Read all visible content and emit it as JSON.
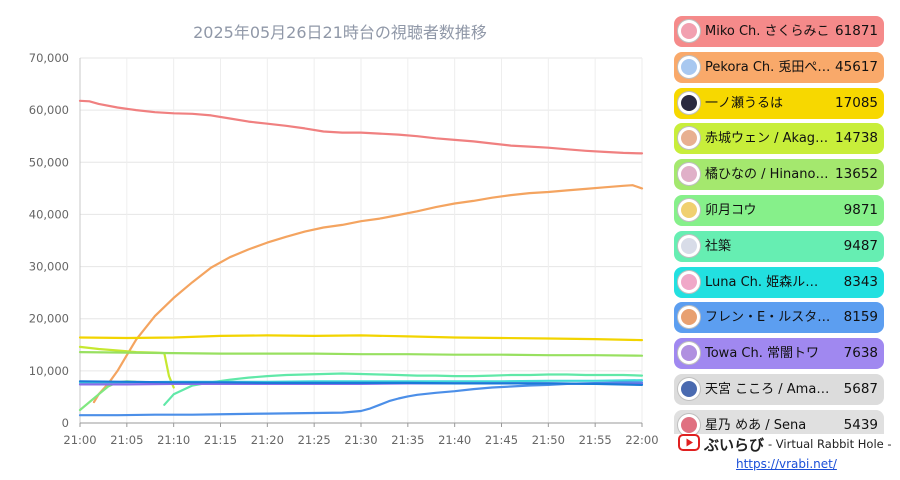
{
  "chart_data": {
    "type": "line",
    "title": "2025年05月26日21時台の視聴者数推移",
    "xlabel": "",
    "ylabel": "",
    "x_ticks": [
      "21:00",
      "21:05",
      "21:10",
      "21:15",
      "21:20",
      "21:25",
      "21:30",
      "21:35",
      "21:40",
      "21:45",
      "21:50",
      "21:55",
      "22:00"
    ],
    "xlim": [
      0,
      60
    ],
    "ylim": [
      0,
      70000
    ],
    "y_ticks": [
      0,
      10000,
      20000,
      30000,
      40000,
      50000,
      60000,
      70000
    ],
    "y_tick_labels": [
      "0",
      "10,000",
      "20,000",
      "30,000",
      "40,000",
      "50,000",
      "60,000",
      "70,000"
    ],
    "grid": true,
    "legend": "right",
    "series": [
      {
        "name": "Miko Ch. さくらみこ",
        "color": "#f08080",
        "x": [
          0,
          1,
          2,
          4,
          6,
          8,
          10,
          12,
          14,
          16,
          18,
          20,
          22,
          24,
          26,
          28,
          30,
          32,
          34,
          36,
          38,
          40,
          42,
          44,
          46,
          48,
          50,
          52,
          54,
          56,
          58,
          60
        ],
        "values": [
          61800,
          61700,
          61200,
          60500,
          60000,
          59600,
          59400,
          59300,
          59000,
          58400,
          57800,
          57400,
          57000,
          56500,
          55900,
          55700,
          55700,
          55500,
          55300,
          55000,
          54600,
          54300,
          54000,
          53600,
          53200,
          53000,
          52800,
          52500,
          52200,
          52000,
          51800,
          51700
        ]
      },
      {
        "name": "Pekora Ch. 兎田ぺこら",
        "color": "#f4a460",
        "x": [
          1.5,
          2,
          3,
          4,
          5,
          6,
          8,
          10,
          12,
          14,
          16,
          18,
          20,
          22,
          24,
          26,
          28,
          30,
          32,
          34,
          36,
          38,
          40,
          42,
          44,
          46,
          48,
          50,
          52,
          54,
          56,
          58,
          59,
          60
        ],
        "values": [
          4000,
          5500,
          7500,
          10000,
          13000,
          16000,
          20500,
          24000,
          27000,
          29800,
          31800,
          33300,
          34600,
          35700,
          36700,
          37500,
          38000,
          38700,
          39200,
          39900,
          40600,
          41400,
          42100,
          42600,
          43200,
          43700,
          44100,
          44300,
          44600,
          44900,
          45200,
          45500,
          45600,
          45000
        ]
      },
      {
        "name": "一ノ瀬うるは",
        "color": "#f2d400",
        "x": [
          0,
          5,
          10,
          15,
          20,
          25,
          30,
          35,
          40,
          45,
          50,
          55,
          60
        ],
        "values": [
          16400,
          16300,
          16400,
          16700,
          16800,
          16700,
          16800,
          16600,
          16400,
          16300,
          16200,
          16100,
          15900
        ]
      },
      {
        "name": "赤城ウェン / Akagi Wen",
        "color": "#c6e830",
        "x": [
          0,
          2,
          4,
          6,
          8,
          9,
          9.5,
          10
        ],
        "values": [
          14600,
          14200,
          13900,
          13600,
          13500,
          13400,
          9000,
          6800
        ]
      },
      {
        "name": "橘ひなの / Hinano Tachibana",
        "color": "#98e060",
        "x": [
          0,
          5,
          10,
          15,
          20,
          25,
          30,
          35,
          40,
          45,
          50,
          55,
          60
        ],
        "values": [
          13600,
          13500,
          13400,
          13300,
          13300,
          13300,
          13200,
          13200,
          13100,
          13100,
          13000,
          13000,
          12900
        ]
      },
      {
        "name": "卯月コウ",
        "color": "#80e880",
        "x": [
          0,
          1,
          2,
          3,
          4,
          5,
          6,
          8,
          9
        ],
        "values": [
          2500,
          4000,
          5500,
          7000,
          7800,
          8000,
          7900,
          7800,
          7700
        ]
      },
      {
        "name": "社築",
        "color": "#60e8a8",
        "x": [
          9,
          10,
          12,
          14,
          16,
          18,
          20,
          22,
          24,
          26,
          28,
          30,
          32,
          34,
          36,
          38,
          40,
          42,
          44,
          46,
          48,
          50,
          52,
          54,
          56,
          58,
          60
        ],
        "values": [
          3500,
          5500,
          7200,
          7800,
          8300,
          8700,
          9000,
          9200,
          9300,
          9400,
          9500,
          9400,
          9300,
          9200,
          9100,
          9100,
          9000,
          9000,
          9100,
          9200,
          9200,
          9300,
          9300,
          9200,
          9200,
          9200,
          9100
        ]
      },
      {
        "name": "Luna Ch. 姫森ルーナ",
        "color": "#40d8d8",
        "x": [
          0,
          5,
          10,
          15,
          20,
          25,
          30,
          35,
          40,
          45,
          50,
          55,
          60
        ],
        "values": [
          7700,
          7800,
          7900,
          7900,
          7900,
          8000,
          8000,
          8000,
          8000,
          8000,
          8100,
          8100,
          8200
        ]
      },
      {
        "name": "フレン・E・ルスタリオ",
        "color": "#4c8fe8",
        "x": [
          0,
          4,
          8,
          12,
          16,
          20,
          24,
          28,
          30,
          31,
          32,
          33,
          34,
          35,
          36,
          38,
          40,
          42,
          44,
          46,
          48,
          50,
          52,
          54,
          56,
          58,
          60
        ],
        "values": [
          1500,
          1500,
          1600,
          1600,
          1700,
          1800,
          1900,
          2000,
          2300,
          2800,
          3500,
          4200,
          4700,
          5100,
          5400,
          5800,
          6100,
          6500,
          6800,
          7000,
          7200,
          7300,
          7500,
          7600,
          7700,
          7800,
          7800
        ]
      },
      {
        "name": "Towa Ch. 常闇トワ",
        "color": "#8a6ce8",
        "x": [
          0,
          5,
          10,
          15,
          20,
          25,
          30,
          35,
          40,
          45,
          50,
          55,
          60
        ],
        "values": [
          7400,
          7400,
          7500,
          7500,
          7500,
          7500,
          7500,
          7600,
          7600,
          7600,
          7600,
          7500,
          7500
        ]
      },
      {
        "name": "天宮 こころ / Amamiya Kokoro",
        "color": "#1a7ad8",
        "x": [
          0,
          5,
          10,
          15,
          20,
          25,
          30,
          35,
          40,
          45,
          50,
          55,
          60
        ],
        "values": [
          8000,
          7900,
          7800,
          7800,
          7700,
          7700,
          7700,
          7700,
          7600,
          7600,
          7600,
          7500,
          7300
        ]
      }
    ]
  },
  "legend": {
    "items": [
      {
        "name": "Miko Ch. さくらみこ",
        "value": "61871",
        "bg": "#f58a8a",
        "avatar_color": "#f2a0b0"
      },
      {
        "name": "Pekora Ch. 兎田ぺこら",
        "value": "45617",
        "bg": "#f9a96a",
        "avatar_color": "#a8c8f0"
      },
      {
        "name": "一ノ瀬うるは",
        "value": "17085",
        "bg": "#f7d800",
        "avatar_color": "#2a2a40"
      },
      {
        "name": "赤城ウェン / Akagi Wen",
        "value": "14738",
        "bg": "#c8ee3a",
        "avatar_color": "#e8b090"
      },
      {
        "name": "橘ひなの / Hinano Tachibana",
        "value": "13652",
        "bg": "#a4e86e",
        "avatar_color": "#e0b0c8"
      },
      {
        "name": "卯月コウ",
        "value": "9871",
        "bg": "#86f08a",
        "avatar_color": "#f0d070"
      },
      {
        "name": "社築",
        "value": "9487",
        "bg": "#66eeb2",
        "avatar_color": "#d8dce8"
      },
      {
        "name": "Luna Ch. 姫森ルーナ",
        "value": "8343",
        "bg": "#22e0e0",
        "avatar_color": "#f0a8c8"
      },
      {
        "name": "フレン・E・ルスタリオ",
        "value": "8159",
        "bg": "#5c9ef0",
        "avatar_color": "#e8a070"
      },
      {
        "name": "Towa Ch. 常闇トワ",
        "value": "7638",
        "bg": "#a088f0",
        "avatar_color": "#b090e0"
      },
      {
        "name": "天宮 こころ / Amamiya Kokoro",
        "value": "5687",
        "bg": "#dcdcdc",
        "avatar_color": "#4a6ab0"
      },
      {
        "name": "星乃 めあ / Sena",
        "value": "5439",
        "bg": "#e0e0e0",
        "avatar_color": "#e07080"
      }
    ]
  },
  "brand": {
    "name": "ぶいらび",
    "tagline": "- Virtual Rabbit Hole -",
    "url": "https://vrabi.net/",
    "icon": "youtube-play-icon"
  }
}
